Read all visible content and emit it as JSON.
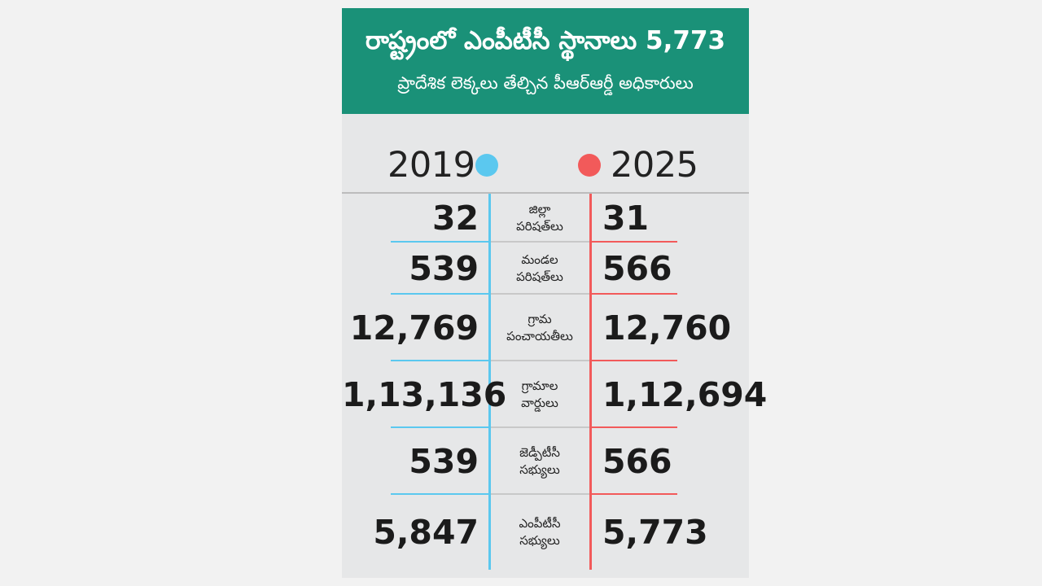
{
  "title": "రాష్ట్రంలో ఎంపీటీసీ స్థానాలు 5,773",
  "subtitle": "ప్రాదేశిక లెక్కలు తేల్చిన పీఆర్ఆర్డీ అధికారులు",
  "colors": {
    "header_bg": "#1a9178",
    "series_2019": "#5bc8ef",
    "series_2025": "#f25a5a",
    "panel_bg": "#e6e7e8"
  },
  "chart_data": {
    "type": "table",
    "series": [
      {
        "name": "2019",
        "values": [
          "32",
          "539",
          "12,769",
          "1,13,136",
          "539",
          "5,847"
        ]
      },
      {
        "name": "2025",
        "values": [
          "31",
          "566",
          "12,760",
          "1,12,694",
          "566",
          "5,773"
        ]
      }
    ],
    "categories": [
      [
        "జిల్లా",
        "పరిషత్‌లు"
      ],
      [
        "మండల",
        "పరిషత్‌లు"
      ],
      [
        "గ్రామ",
        "పంచాయతీలు"
      ],
      [
        "గ్రామాల",
        "వార్డులు"
      ],
      [
        "జెడ్పీటీసీ",
        "సభ్యులు"
      ],
      [
        "ఎంపీటీసీ",
        "సభ్యులు"
      ]
    ]
  }
}
